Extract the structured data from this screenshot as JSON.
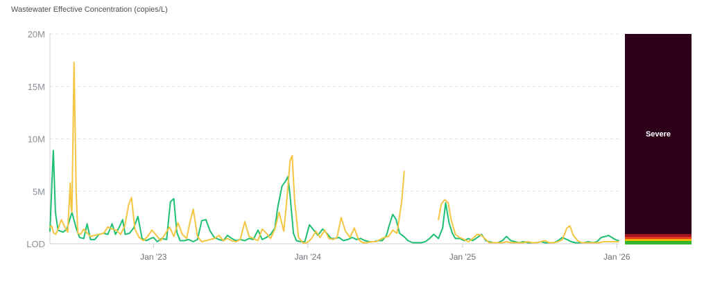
{
  "chart_data": {
    "type": "line",
    "title": "Wastewater Effective Concentration (copies/L)",
    "y_ticks": [
      "LOD",
      "5M",
      "10M",
      "15M",
      "20M"
    ],
    "y_tick_values": [
      0,
      5000000,
      10000000,
      15000000,
      20000000
    ],
    "ylim": [
      0,
      20000000
    ],
    "x_ticks": [
      "Jan '23",
      "Jan '24",
      "Jan '25",
      "Jan '26"
    ],
    "x_tick_dates": [
      "2023-01-01",
      "2024-01-01",
      "2025-01-01",
      "2026-01-01"
    ],
    "xlim": [
      "2022-05-01",
      "2026-01-07"
    ],
    "grid": "horizontal dashed",
    "series": [
      {
        "color": "#1dbf73",
        "points": [
          [
            "2022-05-01",
            1.2
          ],
          [
            "2022-05-06",
            6.0
          ],
          [
            "2022-05-09",
            8.9
          ],
          [
            "2022-05-14",
            3.0
          ],
          [
            "2022-05-20",
            1.3
          ],
          [
            "2022-06-01",
            1.1
          ],
          [
            "2022-06-10",
            1.4
          ],
          [
            "2022-06-22",
            3.0
          ],
          [
            "2022-07-02",
            1.5
          ],
          [
            "2022-07-10",
            0.6
          ],
          [
            "2022-07-20",
            0.5
          ],
          [
            "2022-07-28",
            1.9
          ],
          [
            "2022-08-05",
            0.4
          ],
          [
            "2022-08-15",
            0.4
          ],
          [
            "2022-08-25",
            0.9
          ],
          [
            "2022-09-05",
            1.0
          ],
          [
            "2022-09-15",
            0.9
          ],
          [
            "2022-09-25",
            1.9
          ],
          [
            "2022-10-03",
            0.9
          ],
          [
            "2022-10-12",
            1.6
          ],
          [
            "2022-10-20",
            2.3
          ],
          [
            "2022-10-26",
            0.9
          ],
          [
            "2022-11-05",
            1.0
          ],
          [
            "2022-11-15",
            1.5
          ],
          [
            "2022-11-25",
            2.6
          ],
          [
            "2022-12-05",
            0.5
          ],
          [
            "2022-12-15",
            0.3
          ],
          [
            "2022-12-25",
            0.5
          ],
          [
            "2023-01-01",
            0.6
          ],
          [
            "2023-01-10",
            0.2
          ],
          [
            "2023-01-20",
            0.5
          ],
          [
            "2023-02-01",
            0.4
          ],
          [
            "2023-02-10",
            4.0
          ],
          [
            "2023-02-18",
            4.3
          ],
          [
            "2023-02-25",
            1.1
          ],
          [
            "2023-03-05",
            0.3
          ],
          [
            "2023-03-15",
            0.3
          ],
          [
            "2023-03-25",
            0.4
          ],
          [
            "2023-04-05",
            0.2
          ],
          [
            "2023-04-15",
            0.4
          ],
          [
            "2023-04-25",
            2.2
          ],
          [
            "2023-05-05",
            2.3
          ],
          [
            "2023-05-15",
            1.2
          ],
          [
            "2023-05-25",
            0.6
          ],
          [
            "2023-06-05",
            0.4
          ],
          [
            "2023-06-15",
            0.3
          ],
          [
            "2023-06-25",
            0.8
          ],
          [
            "2023-07-05",
            0.5
          ],
          [
            "2023-07-15",
            0.3
          ],
          [
            "2023-07-25",
            0.4
          ],
          [
            "2023-08-05",
            0.3
          ],
          [
            "2023-08-15",
            0.5
          ],
          [
            "2023-08-25",
            0.4
          ],
          [
            "2023-09-05",
            1.3
          ],
          [
            "2023-09-15",
            0.4
          ],
          [
            "2023-09-25",
            0.6
          ],
          [
            "2023-10-05",
            0.9
          ],
          [
            "2023-10-15",
            1.5
          ],
          [
            "2023-10-22",
            3.5
          ],
          [
            "2023-11-01",
            5.5
          ],
          [
            "2023-11-10",
            6.0
          ],
          [
            "2023-11-15",
            6.4
          ],
          [
            "2023-11-20",
            4.6
          ],
          [
            "2023-11-28",
            1.0
          ],
          [
            "2023-12-05",
            0.3
          ],
          [
            "2023-12-15",
            0.2
          ],
          [
            "2023-12-25",
            0.2
          ],
          [
            "2024-01-05",
            1.8
          ],
          [
            "2024-01-15",
            1.3
          ],
          [
            "2024-01-25",
            0.8
          ],
          [
            "2024-02-05",
            1.4
          ],
          [
            "2024-02-15",
            1.0
          ],
          [
            "2024-02-25",
            0.5
          ],
          [
            "2024-03-05",
            0.5
          ],
          [
            "2024-03-15",
            0.6
          ],
          [
            "2024-03-25",
            0.3
          ],
          [
            "2024-04-05",
            0.4
          ],
          [
            "2024-04-15",
            0.6
          ],
          [
            "2024-04-25",
            0.4
          ],
          [
            "2024-05-05",
            0.5
          ],
          [
            "2024-05-15",
            0.3
          ],
          [
            "2024-05-25",
            0.2
          ],
          [
            "2024-06-05",
            0.2
          ],
          [
            "2024-06-15",
            0.3
          ],
          [
            "2024-06-25",
            0.3
          ],
          [
            "2024-07-05",
            0.8
          ],
          [
            "2024-07-12",
            1.8
          ],
          [
            "2024-07-20",
            2.8
          ],
          [
            "2024-07-28",
            2.3
          ],
          [
            "2024-08-05",
            1.0
          ],
          [
            "2024-08-15",
            0.7
          ],
          [
            "2024-08-25",
            0.3
          ],
          [
            "2024-09-05",
            0.1
          ],
          [
            "2024-09-15",
            0.1
          ],
          [
            "2024-09-25",
            0.1
          ],
          [
            "2024-10-05",
            0.2
          ],
          [
            "2024-10-15",
            0.5
          ],
          [
            "2024-10-25",
            0.9
          ],
          [
            "2024-11-05",
            0.5
          ],
          [
            "2024-11-15",
            1.5
          ],
          [
            "2024-11-22",
            3.9
          ],
          [
            "2024-11-30",
            2.0
          ],
          [
            "2024-12-08",
            1.0
          ],
          [
            "2024-12-15",
            0.5
          ],
          [
            "2024-12-25",
            0.5
          ],
          [
            "2025-01-05",
            0.3
          ],
          [
            "2025-01-15",
            0.5
          ],
          [
            "2025-01-25",
            0.3
          ],
          [
            "2025-02-05",
            0.6
          ],
          [
            "2025-02-15",
            0.9
          ],
          [
            "2025-02-25",
            0.3
          ],
          [
            "2025-03-05",
            0.2
          ],
          [
            "2025-03-15",
            0.1
          ],
          [
            "2025-03-25",
            0.1
          ],
          [
            "2025-04-05",
            0.3
          ],
          [
            "2025-04-15",
            0.7
          ],
          [
            "2025-04-25",
            0.3
          ],
          [
            "2025-05-05",
            0.2
          ],
          [
            "2025-05-15",
            0.1
          ],
          [
            "2025-05-25",
            0.2
          ],
          [
            "2025-06-05",
            0.1
          ],
          [
            "2025-06-15",
            0.1
          ],
          [
            "2025-06-25",
            0.1
          ],
          [
            "2025-07-05",
            0.2
          ],
          [
            "2025-07-15",
            0.1
          ],
          [
            "2025-07-25",
            0.1
          ],
          [
            "2025-08-05",
            0.1
          ],
          [
            "2025-08-15",
            0.3
          ],
          [
            "2025-08-25",
            0.6
          ],
          [
            "2025-09-05",
            0.4
          ],
          [
            "2025-09-15",
            0.2
          ],
          [
            "2025-09-25",
            0.1
          ],
          [
            "2025-10-05",
            0.1
          ],
          [
            "2025-10-15",
            0.1
          ],
          [
            "2025-10-25",
            0.2
          ],
          [
            "2025-11-05",
            0.1
          ],
          [
            "2025-11-15",
            0.2
          ],
          [
            "2025-11-25",
            0.6
          ],
          [
            "2025-12-05",
            0.7
          ],
          [
            "2025-12-12",
            0.8
          ],
          [
            "2025-12-20",
            0.6
          ],
          [
            "2025-12-28",
            0.4
          ],
          [
            "2026-01-05",
            0.3
          ]
        ]
      },
      {
        "color": "#f5c542",
        "points": [
          [
            "2022-05-01",
            1.6
          ],
          [
            "2022-05-05",
            1.7
          ],
          [
            "2022-05-10",
            1.0
          ],
          [
            "2022-05-15",
            0.9
          ],
          [
            "2022-05-20",
            1.4
          ],
          [
            "2022-05-28",
            2.3
          ],
          [
            "2022-06-05",
            1.6
          ],
          [
            "2022-06-12",
            1.1
          ],
          [
            "2022-06-18",
            5.8
          ],
          [
            "2022-06-20",
            3.5
          ],
          [
            "2022-06-22",
            3.0
          ],
          [
            "2022-06-27",
            17.3
          ],
          [
            "2022-07-02",
            5.0
          ],
          [
            "2022-07-06",
            1.0
          ],
          [
            "2022-07-12",
            0.9
          ],
          [
            "2022-07-20",
            1.4
          ],
          [
            "2022-07-28",
            1.0
          ],
          [
            "2022-08-05",
            0.7
          ],
          [
            "2022-08-15",
            0.8
          ],
          [
            "2022-08-25",
            0.9
          ],
          [
            "2022-09-05",
            1.0
          ],
          [
            "2022-09-15",
            1.6
          ],
          [
            "2022-09-25",
            1.4
          ],
          [
            "2022-10-05",
            1.3
          ],
          [
            "2022-10-15",
            0.9
          ],
          [
            "2022-10-25",
            1.7
          ],
          [
            "2022-11-03",
            3.7
          ],
          [
            "2022-11-10",
            4.4
          ],
          [
            "2022-11-18",
            1.4
          ],
          [
            "2022-11-28",
            0.6
          ],
          [
            "2022-12-08",
            0.3
          ],
          [
            "2022-12-18",
            0.7
          ],
          [
            "2022-12-28",
            1.3
          ],
          [
            "2023-01-08",
            0.8
          ],
          [
            "2023-01-18",
            0.3
          ],
          [
            "2023-01-28",
            0.9
          ],
          [
            "2023-02-08",
            1.6
          ],
          [
            "2023-02-18",
            0.7
          ],
          [
            "2023-02-28",
            2.0
          ],
          [
            "2023-03-10",
            0.9
          ],
          [
            "2023-03-20",
            0.5
          ],
          [
            "2023-03-28",
            2.0
          ],
          [
            "2023-04-05",
            3.3
          ],
          [
            "2023-04-15",
            0.7
          ],
          [
            "2023-04-25",
            0.2
          ],
          [
            "2023-05-05",
            0.3
          ],
          [
            "2023-05-15",
            0.4
          ],
          [
            "2023-05-25",
            0.5
          ],
          [
            "2023-06-05",
            0.8
          ],
          [
            "2023-06-15",
            0.3
          ],
          [
            "2023-06-25",
            0.5
          ],
          [
            "2023-07-05",
            0.3
          ],
          [
            "2023-07-15",
            0.2
          ],
          [
            "2023-07-25",
            0.4
          ],
          [
            "2023-08-05",
            2.1
          ],
          [
            "2023-08-15",
            0.7
          ],
          [
            "2023-08-25",
            0.5
          ],
          [
            "2023-09-05",
            0.3
          ],
          [
            "2023-09-15",
            1.4
          ],
          [
            "2023-09-25",
            1.0
          ],
          [
            "2023-10-05",
            0.5
          ],
          [
            "2023-10-15",
            1.4
          ],
          [
            "2023-10-25",
            3.0
          ],
          [
            "2023-11-05",
            1.2
          ],
          [
            "2023-11-12",
            4.0
          ],
          [
            "2023-11-20",
            7.9
          ],
          [
            "2023-11-25",
            8.4
          ],
          [
            "2023-12-01",
            4.0
          ],
          [
            "2023-12-10",
            0.6
          ],
          [
            "2023-12-20",
            0.1
          ],
          [
            "2023-12-30",
            0.1
          ],
          [
            "2024-01-10",
            0.5
          ],
          [
            "2024-01-20",
            1.2
          ],
          [
            "2024-01-30",
            0.6
          ],
          [
            "2024-02-10",
            1.3
          ],
          [
            "2024-02-20",
            0.5
          ],
          [
            "2024-03-01",
            0.4
          ],
          [
            "2024-03-10",
            0.6
          ],
          [
            "2024-03-20",
            2.5
          ],
          [
            "2024-03-30",
            1.2
          ],
          [
            "2024-04-10",
            0.6
          ],
          [
            "2024-04-20",
            1.5
          ],
          [
            "2024-04-30",
            0.4
          ],
          [
            "2024-05-10",
            0.1
          ],
          [
            "2024-05-20",
            0.1
          ],
          [
            "2024-05-30",
            0.2
          ],
          [
            "2024-06-10",
            0.2
          ],
          [
            "2024-06-20",
            0.4
          ],
          [
            "2024-06-30",
            0.6
          ],
          [
            "2024-07-10",
            0.7
          ],
          [
            "2024-07-20",
            1.3
          ],
          [
            "2024-07-30",
            1.0
          ],
          [
            "2024-08-10",
            4.0
          ],
          [
            "2024-08-16",
            6.9
          ],
          [
            "2024-11-05",
            2.3
          ],
          [
            "2024-11-12",
            3.8
          ],
          [
            "2024-11-20",
            4.2
          ],
          [
            "2024-11-28",
            3.9
          ],
          [
            "2024-12-05",
            2.3
          ],
          [
            "2024-12-15",
            0.9
          ],
          [
            "2024-12-25",
            0.6
          ],
          [
            "2025-01-05",
            0.4
          ],
          [
            "2025-01-15",
            0.2
          ],
          [
            "2025-01-25",
            0.5
          ],
          [
            "2025-02-05",
            0.9
          ],
          [
            "2025-02-15",
            0.8
          ],
          [
            "2025-02-25",
            0.4
          ],
          [
            "2025-03-05",
            0.1
          ],
          [
            "2025-03-15",
            0.1
          ],
          [
            "2025-03-25",
            0.1
          ],
          [
            "2025-04-05",
            0.1
          ],
          [
            "2025-04-15",
            0.2
          ],
          [
            "2025-04-25",
            0.1
          ],
          [
            "2025-05-05",
            0.1
          ],
          [
            "2025-05-15",
            0.1
          ],
          [
            "2025-05-25",
            0.1
          ],
          [
            "2025-06-05",
            0.2
          ],
          [
            "2025-06-15",
            0.1
          ],
          [
            "2025-06-25",
            0.1
          ],
          [
            "2025-07-05",
            0.2
          ],
          [
            "2025-07-15",
            0.3
          ],
          [
            "2025-07-25",
            0.1
          ],
          [
            "2025-08-05",
            0.1
          ],
          [
            "2025-08-15",
            0.2
          ],
          [
            "2025-08-25",
            0.4
          ],
          [
            "2025-09-05",
            1.5
          ],
          [
            "2025-09-12",
            1.7
          ],
          [
            "2025-09-20",
            0.8
          ],
          [
            "2025-09-30",
            0.3
          ],
          [
            "2025-10-10",
            0.1
          ],
          [
            "2025-10-20",
            0.1
          ],
          [
            "2025-10-30",
            0.1
          ],
          [
            "2025-11-10",
            0.1
          ],
          [
            "2025-11-20",
            0.1
          ],
          [
            "2025-11-30",
            0.2
          ],
          [
            "2025-12-10",
            0.2
          ],
          [
            "2025-12-20",
            0.2
          ],
          [
            "2026-01-05",
            0.2
          ]
        ]
      }
    ]
  },
  "value_unit_note_visible": false,
  "level_band": {
    "label": "Severe",
    "colors": [
      "#2b0018",
      "#a3141e",
      "#e03a22",
      "#f5b400",
      "#2fb82f"
    ]
  }
}
